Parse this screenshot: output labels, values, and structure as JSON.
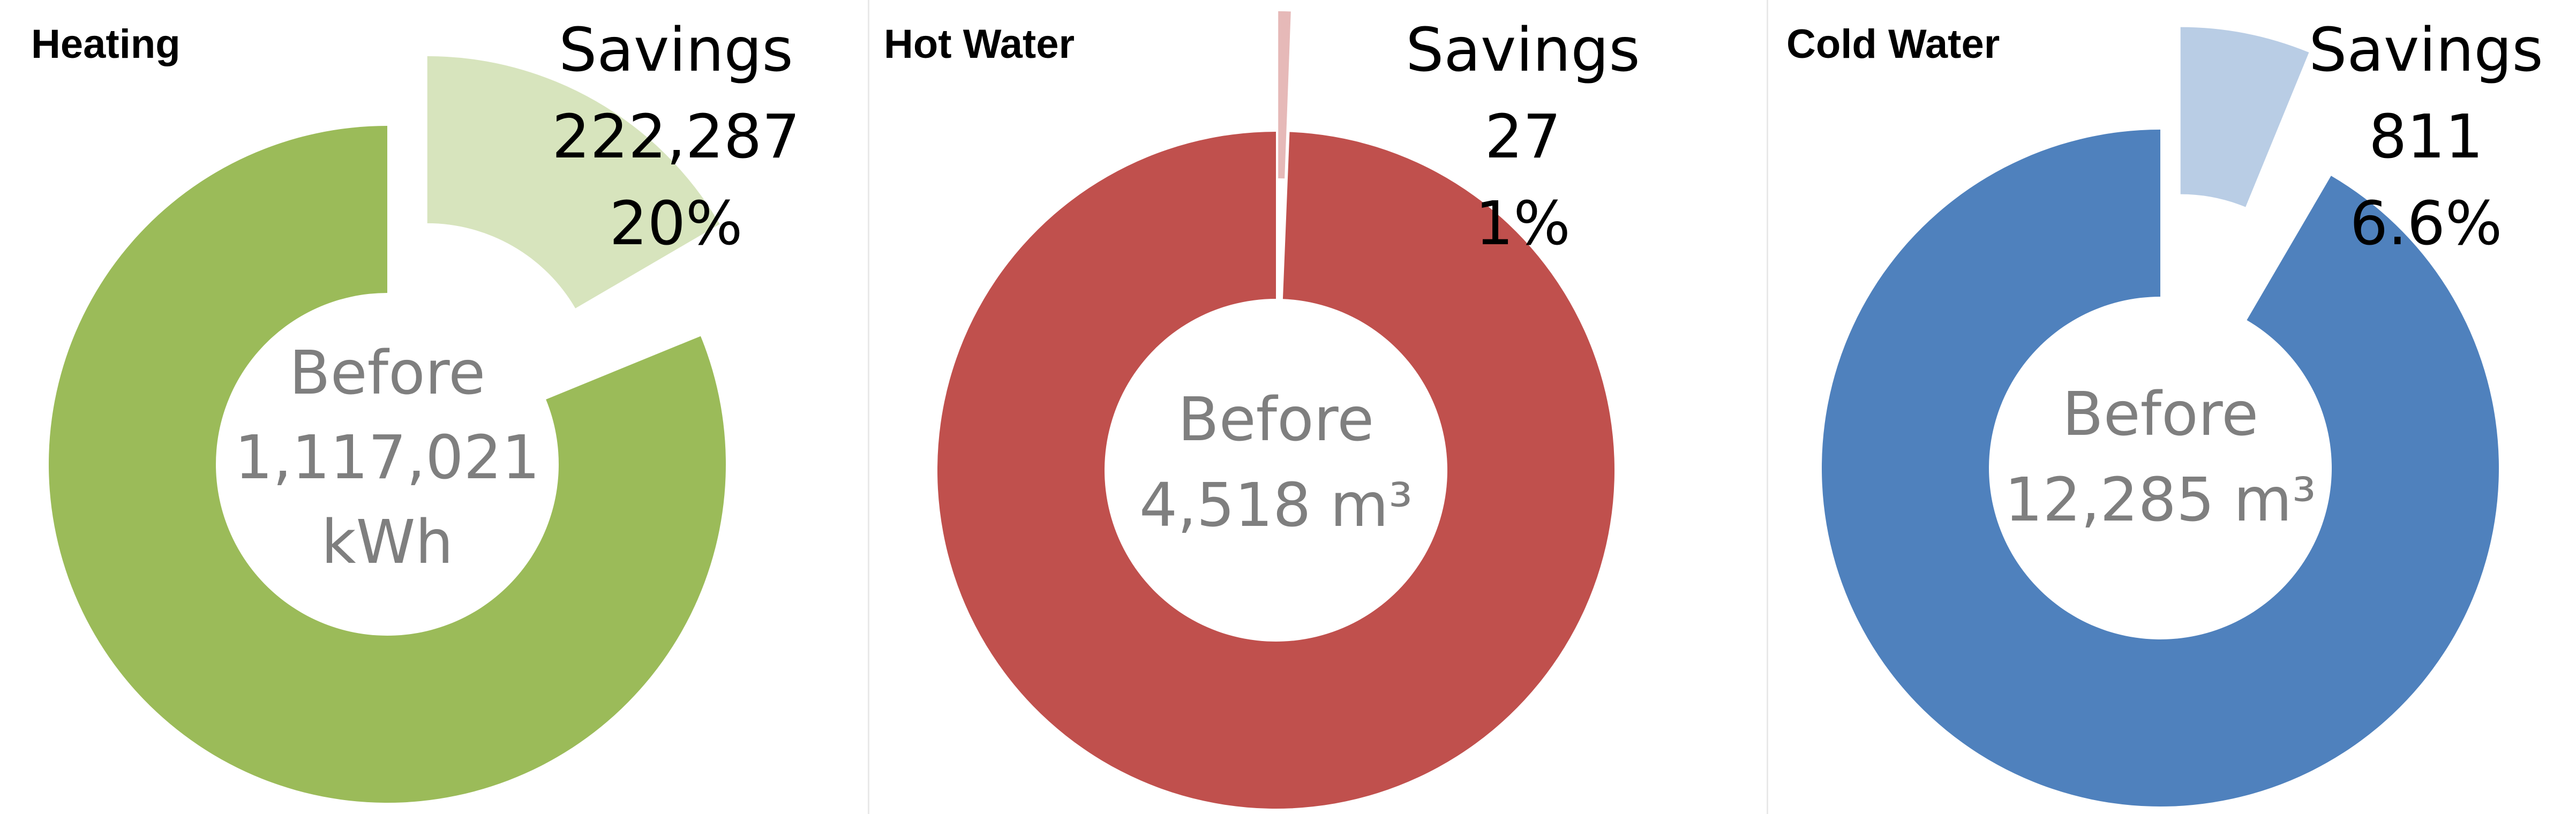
{
  "chart_data": [
    {
      "type": "pie",
      "title": "Heating",
      "unit": "kWh",
      "slices": [
        {
          "name": "Before",
          "value": 1117021,
          "color": "#9bbb59"
        },
        {
          "name": "Savings",
          "value": 222287,
          "color": "#d7e4bd"
        }
      ],
      "labels": {
        "savings_heading": "Savings",
        "savings_value": "222,287",
        "savings_percent": "20%",
        "center_heading": "Before",
        "center_value": "1,117,021",
        "center_unit": "kWh"
      }
    },
    {
      "type": "pie",
      "title": "Hot Water",
      "unit": "m³",
      "slices": [
        {
          "name": "Before",
          "value": 4518,
          "color": "#c0504d"
        },
        {
          "name": "Savings",
          "value": 27,
          "color": "#e6b9b8"
        }
      ],
      "labels": {
        "savings_heading": "Savings",
        "savings_value": "27",
        "savings_percent": "1%",
        "center_heading": "Before",
        "center_value": "4,518 m³"
      }
    },
    {
      "type": "pie",
      "title": "Cold Water",
      "unit": "m³",
      "slices": [
        {
          "name": "Before",
          "value": 12285,
          "color": "#4f81bd"
        },
        {
          "name": "Savings",
          "value": 811,
          "color": "#b9cde5"
        }
      ],
      "labels": {
        "savings_heading": "Savings",
        "savings_value": "811",
        "savings_percent": "6.6%",
        "center_heading": "Before",
        "center_value": "12,285 m³"
      }
    }
  ]
}
